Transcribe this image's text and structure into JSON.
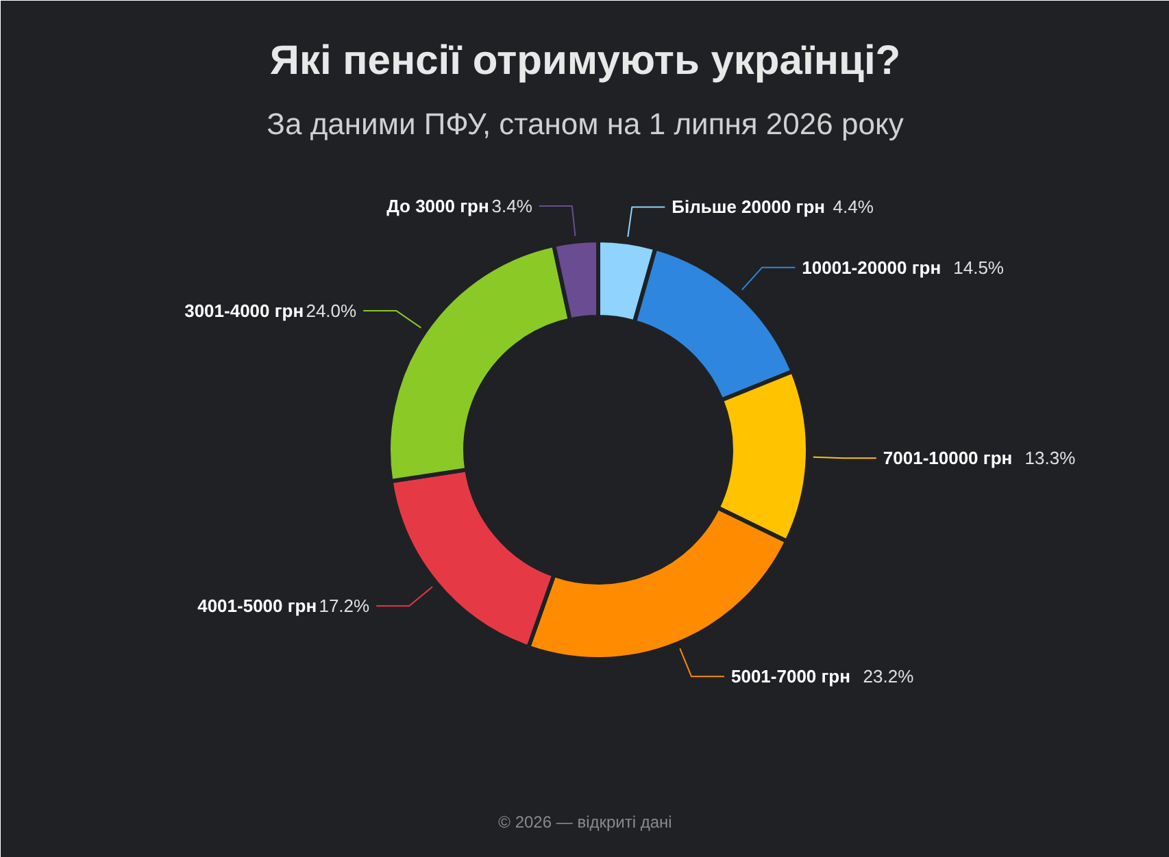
{
  "chart_data": {
    "type": "donut",
    "title": "Які пенсії отримують українці?",
    "subtitle": "За даними ПФУ, станом на 1 липня 2026 року",
    "categories": [
      "Більше 20000 грн",
      "10001-20000 грн",
      "7001-10000 грн",
      "5001-7000 грн",
      "4001-5000 грн",
      "3001-4000 грн",
      "До 3000 грн"
    ],
    "values": [
      4.4,
      14.5,
      13.3,
      23.2,
      17.2,
      24.0,
      3.4
    ],
    "value_labels": [
      "4.4%",
      "14.5%",
      "13.3%",
      "23.2%",
      "17.2%",
      "24.0%",
      "3.4%"
    ],
    "colors": [
      "#8fd3fe",
      "#2e86de",
      "#ffc300",
      "#ff8c00",
      "#e63946",
      "#8ac926",
      "#6a4c93"
    ],
    "annotations": [
      "© 2026 — відкриті дані"
    ]
  }
}
